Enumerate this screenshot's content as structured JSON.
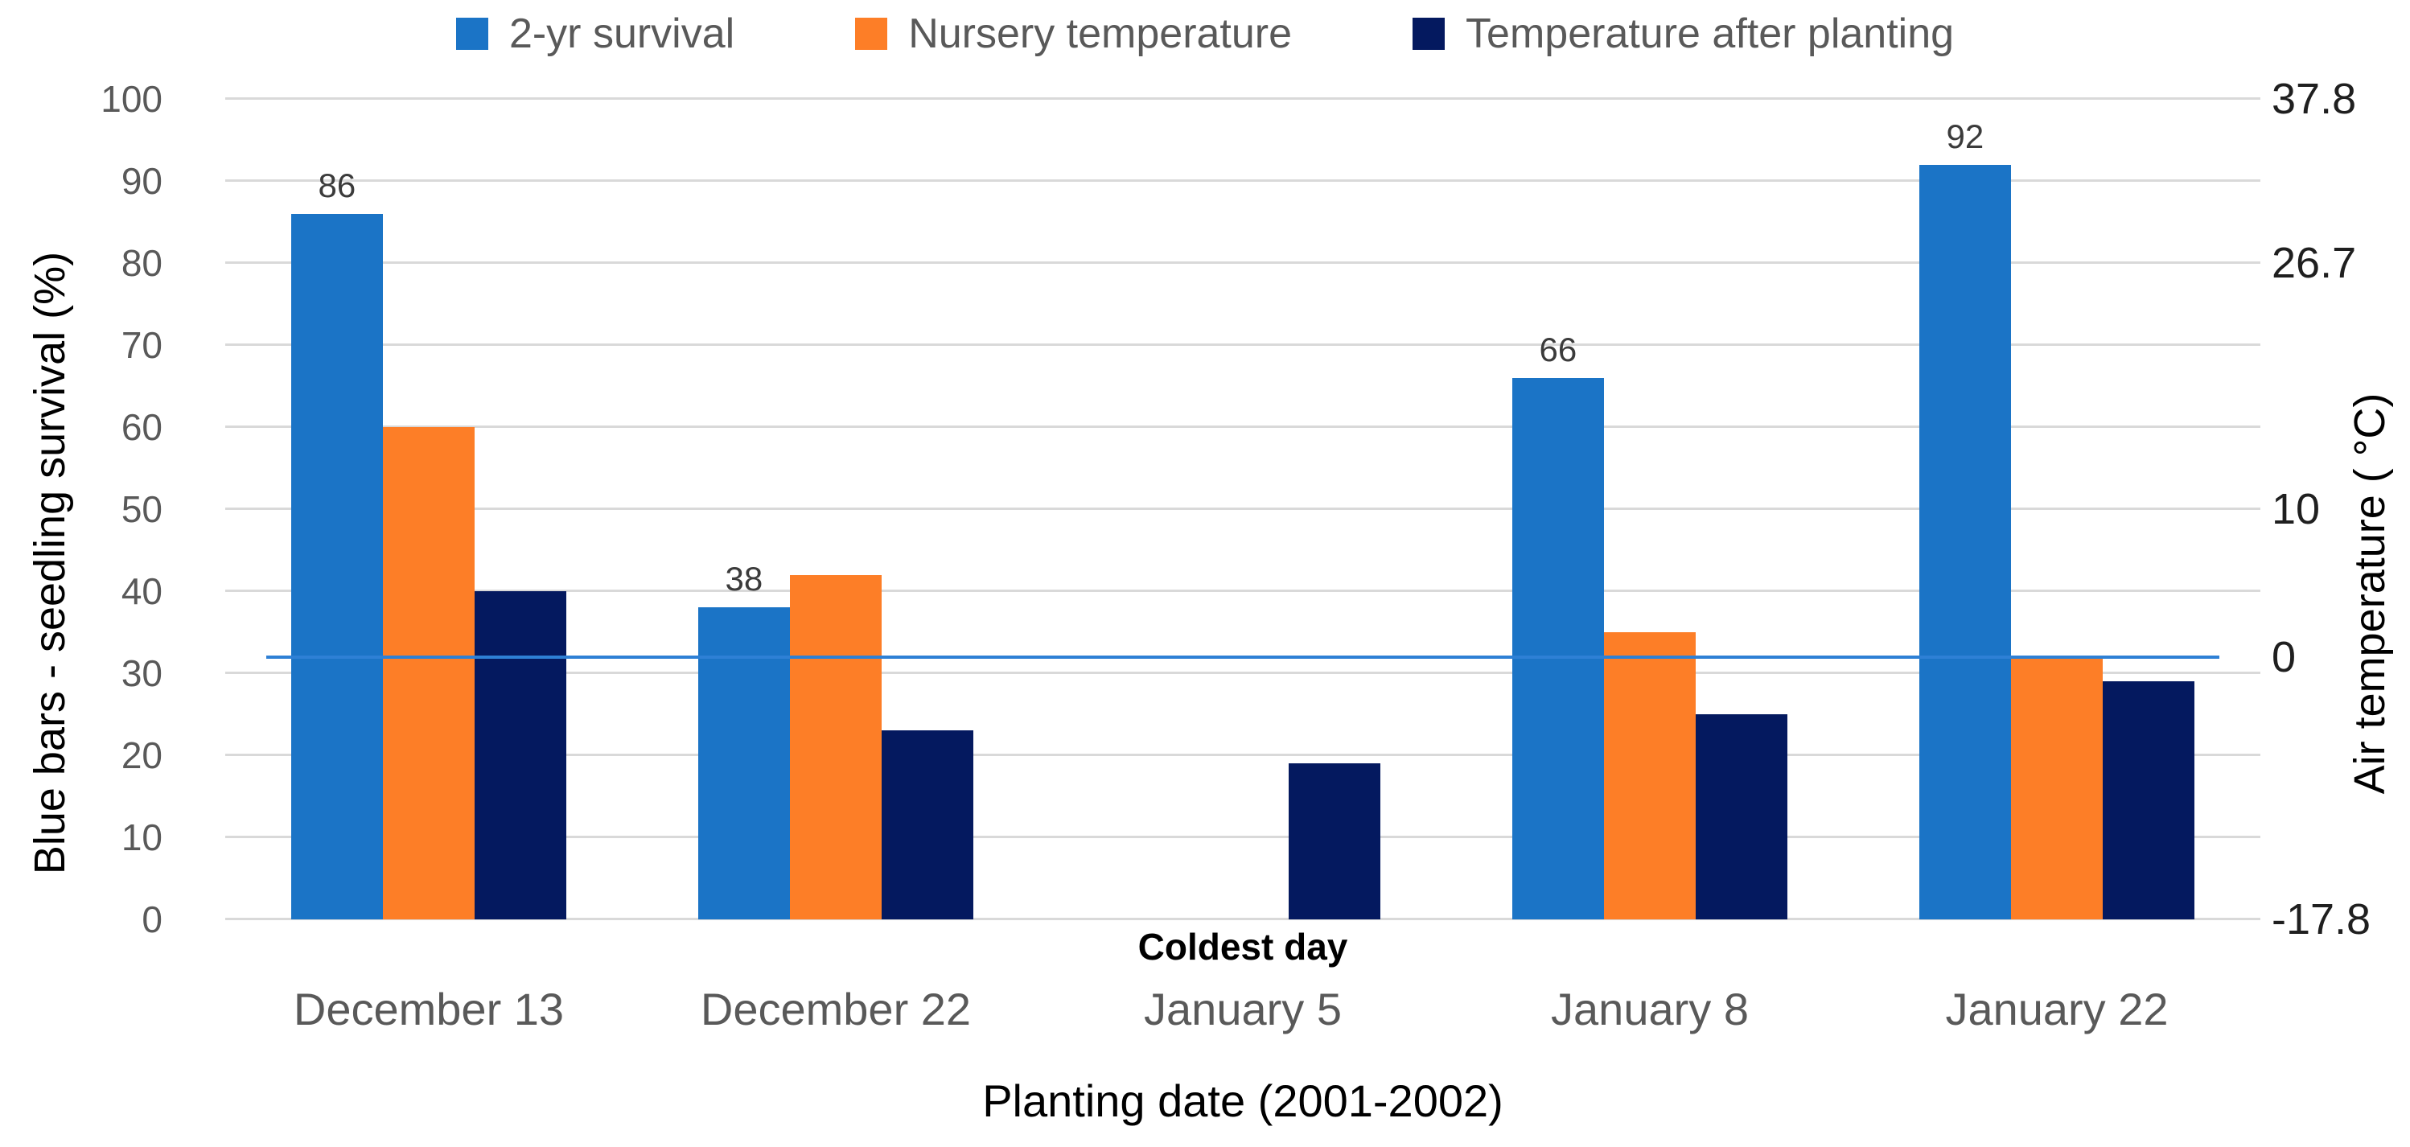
{
  "legend": {
    "position": "top",
    "items": [
      {
        "label": "2-yr survival",
        "color": "#1b74c6"
      },
      {
        "label": "Nursery temperature",
        "color": "#fd7e27"
      },
      {
        "label": "Temperature after planting",
        "color": "#04195f"
      }
    ]
  },
  "chart_data": {
    "type": "bar",
    "title": "",
    "categories": [
      "December 13",
      "December 22",
      "January 5",
      "January 8",
      "January 22"
    ],
    "series": [
      {
        "name": "2-yr survival",
        "color": "#1b74c6",
        "labels_shown": true,
        "values": [
          86,
          38,
          null,
          66,
          92
        ]
      },
      {
        "name": "Nursery temperature",
        "color": "#fd7e27",
        "labels_shown": false,
        "values": [
          60,
          42,
          null,
          35,
          32
        ]
      },
      {
        "name": "Temperature after planting",
        "color": "#04195f",
        "labels_shown": false,
        "values": [
          40,
          23,
          19,
          25,
          29
        ]
      }
    ],
    "xlabel": "Planting date (2001-2002)",
    "ylabel_left": "Blue bars - seedling survival (%)",
    "ylabel_right": "Air temperature ( °C)",
    "left_axis": {
      "min": 0,
      "max": 100,
      "ticks": [
        0,
        10,
        20,
        30,
        40,
        50,
        60,
        70,
        80,
        90,
        100
      ]
    },
    "right_axis": {
      "ticks": [
        {
          "position": 100,
          "label": "37.8"
        },
        {
          "position": 80,
          "label": "26.7"
        },
        {
          "position": 50,
          "label": "10"
        },
        {
          "position": 32,
          "label": "0"
        },
        {
          "position": 0,
          "label": "-17.8"
        }
      ]
    },
    "zero_line": {
      "position": 32,
      "color": "#2e80d5"
    },
    "annotation": {
      "text": "Coldest day",
      "category": "January 5",
      "category_index": 2
    },
    "grid": true,
    "legend_position": "top",
    "colors": {
      "gridline": "#d9d9d9",
      "left_tick_text": "#595959",
      "right_tick_text": "#1f1f1f",
      "category_text": "#595959",
      "data_label_text": "#3b3b3b",
      "axis_title_text": "#000000"
    }
  }
}
